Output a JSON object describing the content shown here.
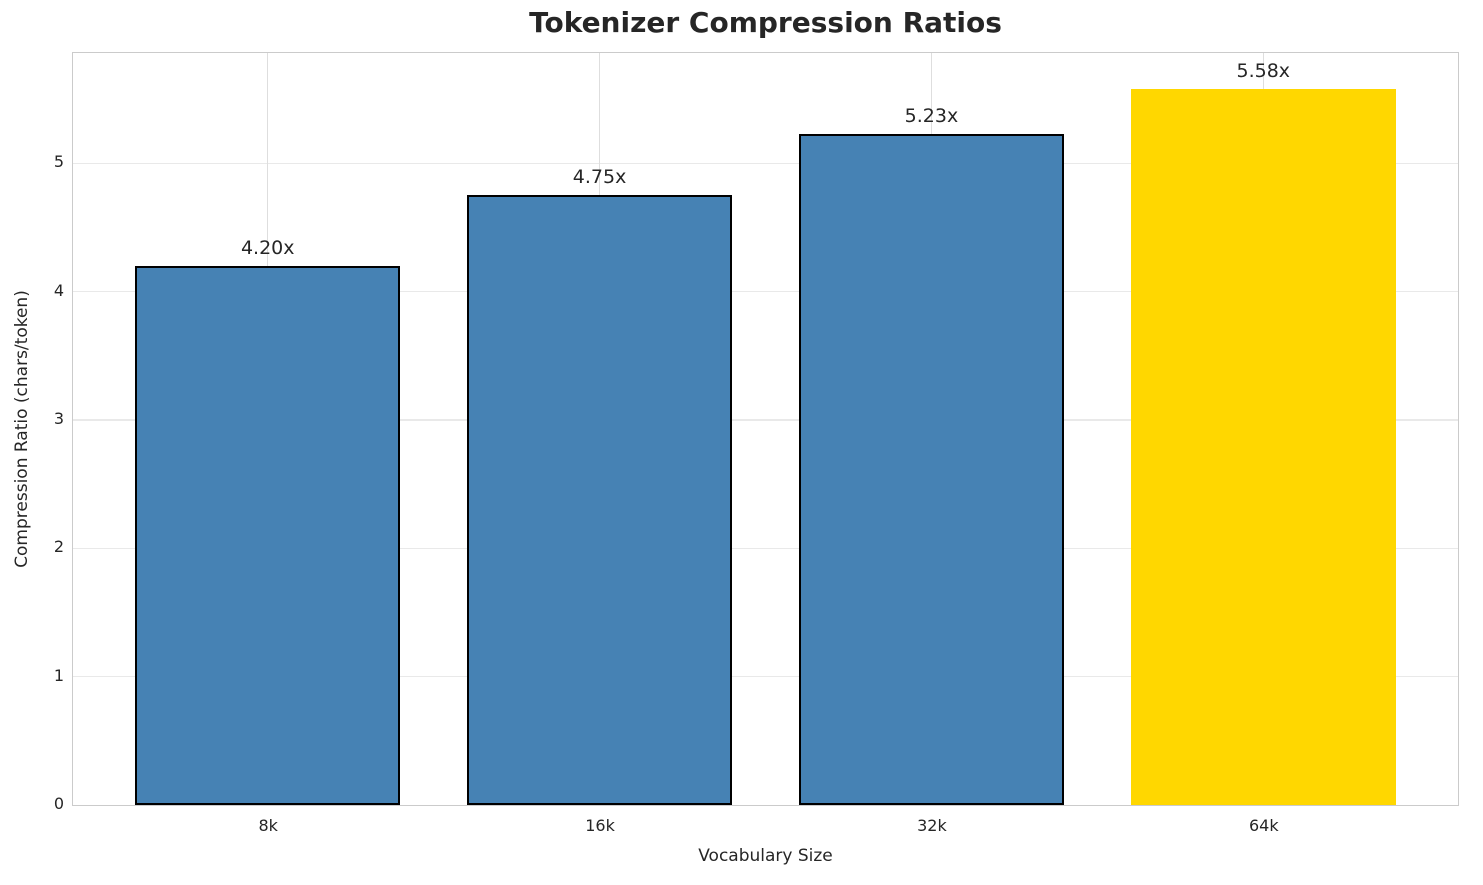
{
  "chart_data": {
    "type": "bar",
    "title": "Tokenizer Compression Ratios",
    "xlabel": "Vocabulary Size",
    "ylabel": "Compression Ratio (chars/token)",
    "categories": [
      "8k",
      "16k",
      "32k",
      "64k"
    ],
    "values": [
      4.2,
      4.75,
      5.23,
      5.58
    ],
    "value_labels": [
      "4.20x",
      "4.75x",
      "5.23x",
      "5.58x"
    ],
    "bar_colors": [
      "#4682b4",
      "#4682b4",
      "#4682b4",
      "#ffd700"
    ],
    "bar_edge_colors": [
      "#000000",
      "#000000",
      "#000000",
      "none"
    ],
    "ylim": [
      0,
      5.86
    ],
    "yticks": [
      0,
      1,
      2,
      3,
      4,
      5
    ],
    "grid": true,
    "legend": "none"
  },
  "colors": {
    "background": "#ffffff",
    "spine": "#cbcbcb",
    "gridline": "#e9e9e9",
    "text": "#262626",
    "bar_default": "#4682b4",
    "bar_highlight": "#ffd700",
    "bar_edge": "#000000"
  }
}
